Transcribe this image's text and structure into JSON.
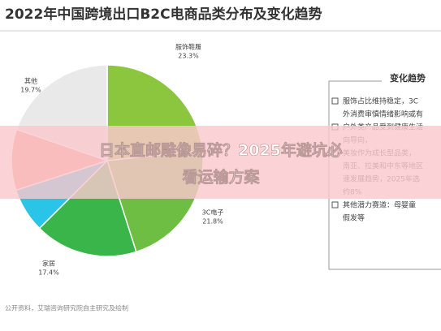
{
  "chart_data": {
    "type": "pie",
    "title": "2022年中国跨境出口B2C电商品类分布及变化趋势",
    "categories": [
      "服饰鞋履",
      "3C电子",
      "家居",
      null,
      null,
      "其他"
    ],
    "values": [
      23.3,
      21.8,
      17.4,
      7.5,
      10.3,
      19.7
    ],
    "value_labels": [
      "23.3%",
      "21.8%",
      "17.4%",
      null,
      null,
      "19.7%"
    ],
    "colors": [
      "#8cc63f",
      "#6fbe44",
      "#39b54a",
      "#29c4e8",
      "#f08c7a",
      "#e9e9e9"
    ],
    "source": "公开资料，艾瑞咨询研究院自主研究及绘制"
  },
  "panel": {
    "title": "变化趋势",
    "lines": [
      "服饰占比维持稳定，3C",
      "外消费审慎情绪影响或有",
      "户外类产品受到健康生活",
      "向导向，",
      "美妆作为成长型品类，",
      "南亚、拉美和中东等地区",
      "速发展趋势，2025年选",
      "约8%",
      "其他潜力赛道：母婴童",
      "假发等"
    ]
  },
  "overlay": {
    "lines": [
      "日本直邮雕像易碎？2025年避坑必",
      "看运输方案"
    ]
  }
}
